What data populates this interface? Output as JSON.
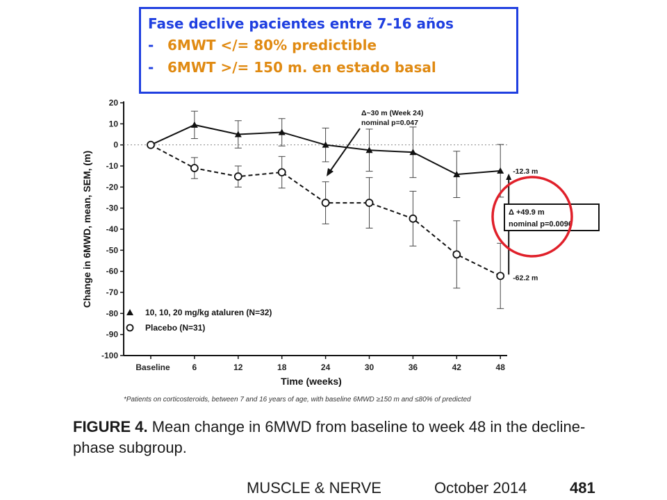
{
  "callout": {
    "title": "Fase declive  pacientes entre 7-16 años",
    "items": [
      {
        "dash": "-",
        "text": "6MWT </= 80% predictible"
      },
      {
        "dash": "-",
        "text": "6MWT >/= 150 m. en estado basal"
      }
    ]
  },
  "chart_data": {
    "type": "line",
    "xlabel": "Time (weeks)",
    "ylabel": "Change in 6MWD, mean, SEM, (m)",
    "categories": [
      "Baseline",
      "6",
      "12",
      "18",
      "24",
      "30",
      "36",
      "42",
      "48"
    ],
    "ylim": [
      -100,
      20
    ],
    "yticks": [
      20,
      10,
      0,
      -10,
      -20,
      -30,
      -40,
      -50,
      -60,
      -70,
      -80,
      -90,
      -100
    ],
    "series": [
      {
        "name": "10, 10, 20 mg/kg ataluren (N=32)",
        "marker": "triangle",
        "line": "solid",
        "values": [
          0,
          9.5,
          5,
          6,
          0,
          -2.5,
          -3.5,
          -14,
          -12.3
        ],
        "errors": [
          0,
          6.5,
          6.5,
          6.5,
          8,
          10,
          12,
          11,
          12.5
        ]
      },
      {
        "name": "Placebo (N=31)",
        "marker": "circle",
        "line": "dashed",
        "values": [
          0,
          -11,
          -15,
          -13,
          -27.5,
          -27.5,
          -35,
          -52,
          -62.2
        ],
        "errors": [
          0,
          5,
          5,
          7.5,
          10,
          12,
          13,
          16,
          15.5
        ]
      }
    ],
    "annotations": {
      "week24_line1": "Δ~30 m (Week 24)",
      "week24_line2": "nominal p=0.047",
      "delta_line1": "Δ  +49.9 m",
      "delta_line2": "nominal p=0.0096",
      "end_label_ataluren": "-12.3 m",
      "end_label_placebo": "-62.2 m"
    },
    "highlight_color": "#e0202a",
    "legend_position": "bottom-left",
    "grid": false
  },
  "footnote": "*Patients on corticosteroids, between 7 and 16 years of age, with baseline 6MWD ≥150 m and ≤80% of predicted",
  "caption": {
    "label": "FIGURE 4.",
    "text": " Mean change in 6MWD from baseline to week 48 in the decline-phase subgroup."
  },
  "journal": {
    "name": "MUSCLE & NERVE",
    "date": "October 2014",
    "page": "481"
  }
}
